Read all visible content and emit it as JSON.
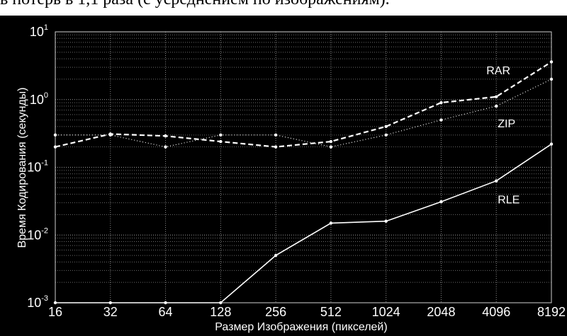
{
  "caption": "в потерь в 1,1 раза (с усреднением по изображениям).",
  "chart_data": {
    "type": "line",
    "xlabel": "Размер Изображения (пикселей)",
    "ylabel": "Время Кодирования (секунды)",
    "yscale": "log",
    "ylim": [
      0.001,
      10
    ],
    "grid": true,
    "categories": [
      "16",
      "32",
      "64",
      "128",
      "256",
      "512",
      "1024",
      "2048",
      "4096",
      "8192"
    ],
    "y_ticks": [
      {
        "base": "10",
        "exp": "1",
        "value": 10
      },
      {
        "base": "10",
        "exp": "0",
        "value": 1
      },
      {
        "base": "10",
        "exp": "-1",
        "value": 0.1
      },
      {
        "base": "10",
        "exp": "-2",
        "value": 0.01
      },
      {
        "base": "10",
        "exp": "-3",
        "value": 0.001
      }
    ],
    "series": [
      {
        "name": "RAR",
        "style": "dashed",
        "values": [
          0.2,
          0.31,
          0.29,
          0.24,
          0.2,
          0.24,
          0.4,
          0.9,
          1.1,
          3.6
        ]
      },
      {
        "name": "ZIP",
        "style": "dotted",
        "values": [
          0.3,
          0.3,
          0.2,
          0.3,
          0.3,
          0.2,
          0.3,
          0.5,
          0.8,
          2.0
        ]
      },
      {
        "name": "RLE",
        "style": "solid",
        "values": [
          0.001,
          0.001,
          0.001,
          0.001,
          0.005,
          0.015,
          0.016,
          0.031,
          0.063,
          0.22
        ]
      }
    ]
  }
}
